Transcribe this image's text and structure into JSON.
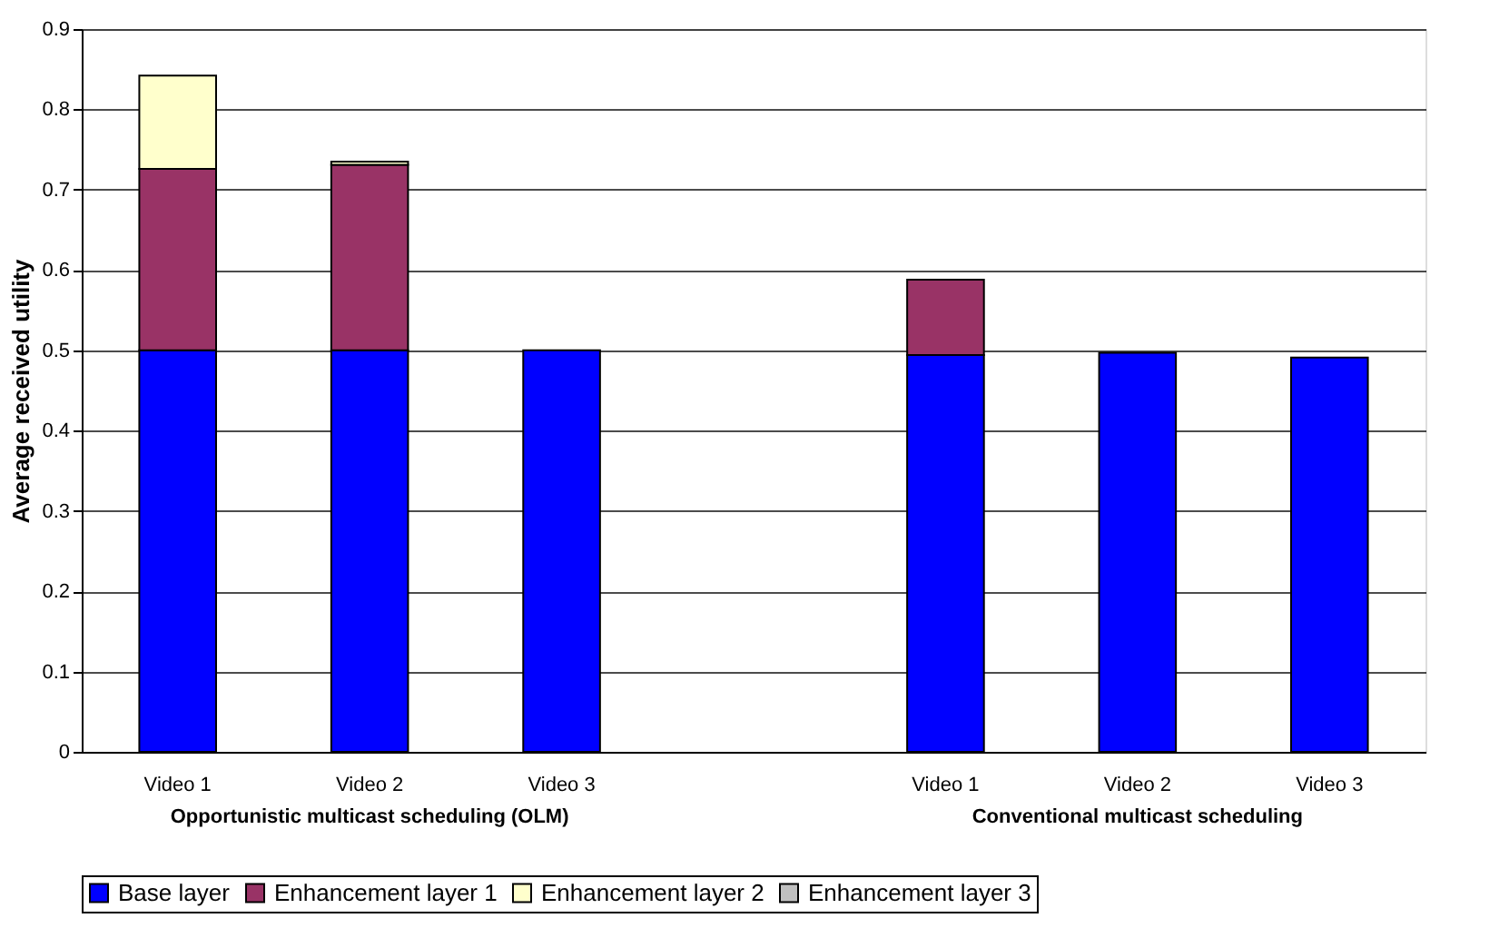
{
  "chart_data": {
    "type": "bar",
    "stacked": true,
    "ylabel": "Average received utility",
    "categories": [
      "Video 1",
      "Video 2",
      "Video 3",
      null,
      "Video 1",
      "Video 2",
      "Video 3"
    ],
    "series": [
      {
        "name": "Base layer",
        "color": "#0000ff",
        "values": [
          0.5,
          0.5,
          0.5,
          null,
          0.494,
          0.497,
          0.491
        ]
      },
      {
        "name": "Enhancement layer 1",
        "color": "#993366",
        "values": [
          0.226,
          0.231,
          null,
          null,
          0.094,
          null,
          null
        ]
      },
      {
        "name": "Enhancement layer 2",
        "color": "#ffffcc",
        "values": [
          0.116,
          0.004,
          null,
          null,
          null,
          null,
          null
        ]
      },
      {
        "name": "Enhancement layer 3",
        "color": "#c0c0c0",
        "values": [
          null,
          null,
          null,
          null,
          null,
          null,
          null
        ]
      }
    ],
    "annotations": [
      "Opportunistic multicast scheduling (OLM)",
      "Conventional multicast scheduling"
    ],
    "ylim": [
      0,
      0.9
    ],
    "yticks": [
      0,
      0.1,
      0.2,
      0.3,
      0.4,
      0.5,
      0.6,
      0.7,
      0.8,
      0.9
    ],
    "grid": "y",
    "legend": "bottom"
  }
}
